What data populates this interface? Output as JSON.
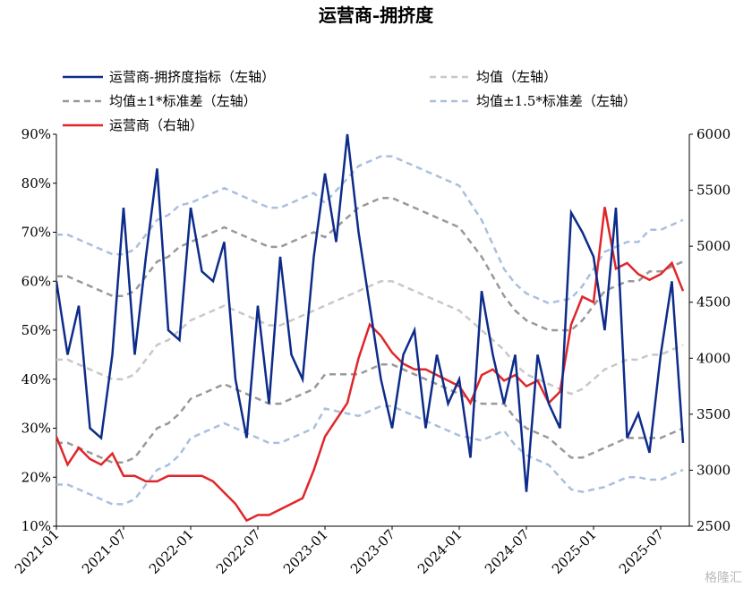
{
  "chart_data": {
    "type": "line",
    "title": "运营商-拥挤度",
    "watermark": "格隆汇",
    "categories": [
      "2021-01",
      null,
      null,
      null,
      null,
      null,
      "2021-07",
      null,
      null,
      null,
      null,
      null,
      "2022-01",
      null,
      null,
      null,
      null,
      null,
      "2022-07",
      null,
      null,
      null,
      null,
      null,
      "2023-01",
      null,
      null,
      null,
      null,
      null,
      "2023-07",
      null,
      null,
      null,
      null,
      null,
      "2024-01",
      null,
      null,
      null,
      null,
      null,
      "2024-07",
      null,
      null,
      null,
      null,
      null,
      "2025-01",
      null,
      null,
      null,
      null,
      null,
      "2025-07",
      null,
      null
    ],
    "ylim": [
      10,
      90
    ],
    "yticks": [
      {
        "value": 10,
        "label": "10%"
      },
      {
        "value": 20,
        "label": "20%"
      },
      {
        "value": 30,
        "label": "30%"
      },
      {
        "value": 40,
        "label": "40%"
      },
      {
        "value": 50,
        "label": "50%"
      },
      {
        "value": 60,
        "label": "60%"
      },
      {
        "value": 70,
        "label": "70%"
      },
      {
        "value": 80,
        "label": "80%"
      },
      {
        "value": 90,
        "label": "90%"
      }
    ],
    "y2lim": [
      2500,
      6000
    ],
    "y2ticks": [
      2500,
      3000,
      3500,
      4000,
      4500,
      5000,
      5500,
      6000
    ],
    "series": [
      {
        "name": "运营商-拥挤度指标（左轴）",
        "color": "#0d2c8a",
        "dashed": false,
        "axis": "y",
        "values": [
          60,
          45,
          55,
          30,
          28,
          45,
          75,
          45,
          65,
          83,
          50,
          48,
          75,
          62,
          60,
          68,
          40,
          28,
          55,
          35,
          65,
          45,
          40,
          65,
          82,
          68,
          90,
          70,
          55,
          40,
          30,
          45,
          50,
          30,
          45,
          35,
          40,
          24,
          58,
          45,
          35,
          45,
          17,
          45,
          35,
          30,
          74,
          70,
          65,
          50,
          75,
          28,
          33,
          25,
          45,
          60,
          27
        ]
      },
      {
        "name": "均值（左轴）",
        "color": "#c8c8c8",
        "dashed": true,
        "axis": "y",
        "values": [
          44,
          44,
          43,
          42,
          41,
          40,
          40,
          41,
          44,
          47,
          48,
          50,
          52,
          53,
          54,
          55,
          54,
          53,
          52,
          51,
          51,
          52,
          53,
          54,
          55,
          56,
          57,
          58,
          59,
          60,
          60,
          59,
          58,
          57,
          56,
          55,
          54,
          52,
          50,
          48,
          46,
          43,
          41,
          40,
          39,
          38,
          37,
          38,
          40,
          42,
          43,
          44,
          44,
          45,
          45,
          46,
          47
        ]
      },
      {
        "name": "均值±1*标准差（左轴）",
        "color": "#999999",
        "dashed": true,
        "axis": "y",
        "upper": [
          61,
          61,
          60,
          59,
          58,
          57,
          57,
          58,
          61,
          64,
          65,
          67,
          68,
          69,
          70,
          71,
          70,
          69,
          68,
          67,
          67,
          68,
          69,
          70,
          69,
          71,
          73,
          75,
          76,
          77,
          77,
          76,
          75,
          74,
          73,
          72,
          71,
          68,
          65,
          61,
          57,
          54,
          52,
          51,
          50,
          50,
          50,
          52,
          55,
          58,
          59,
          60,
          60,
          62,
          62,
          63,
          64
        ],
        "lower": [
          27,
          27,
          26,
          25,
          24,
          23,
          23,
          24,
          27,
          30,
          31,
          33,
          36,
          37,
          38,
          39,
          38,
          37,
          36,
          35,
          35,
          36,
          37,
          38,
          41,
          41,
          41,
          41,
          42,
          43,
          43,
          42,
          41,
          40,
          39,
          38,
          37,
          36,
          35,
          35,
          35,
          32,
          30,
          29,
          28,
          26,
          24,
          24,
          25,
          26,
          27,
          28,
          28,
          28,
          28,
          29,
          30
        ]
      },
      {
        "name": "均值±1.5*标准差（左轴）",
        "color": "#a9bfe0",
        "dashed": true,
        "axis": "y",
        "upper": [
          69.5,
          69.5,
          68.5,
          67.5,
          66.5,
          65.5,
          65.5,
          66.5,
          69.5,
          72.5,
          73.5,
          75.5,
          76,
          77,
          78,
          79,
          78,
          77,
          76,
          75,
          75,
          76,
          77,
          78,
          76,
          78.5,
          81,
          83.5,
          84.5,
          85.5,
          85.5,
          84.5,
          83.5,
          82.5,
          81.5,
          80.5,
          79.5,
          76,
          72.5,
          67.5,
          62.5,
          59.5,
          57.5,
          56.5,
          55.5,
          56,
          56.5,
          59,
          62.5,
          66,
          67,
          68,
          68,
          70.5,
          70.5,
          71.5,
          72.5
        ],
        "lower": [
          18.5,
          18.5,
          17.5,
          16.5,
          15.5,
          14.5,
          14.5,
          15.5,
          18.5,
          21.5,
          22.5,
          24.5,
          28,
          29,
          30,
          31,
          30,
          29,
          28,
          27,
          27,
          28,
          29,
          30,
          34,
          33.5,
          33,
          32.5,
          33.5,
          34.5,
          34.5,
          33.5,
          32.5,
          31.5,
          30.5,
          29.5,
          28.5,
          28,
          27.5,
          28.5,
          29.5,
          26.5,
          24.5,
          23.5,
          22.5,
          20,
          17.5,
          17,
          17.5,
          18,
          19,
          20,
          20,
          19.5,
          19.5,
          20.5,
          21.5
        ]
      },
      {
        "name": "运营商（右轴）",
        "color": "#e0262a",
        "dashed": false,
        "axis": "y2",
        "values": [
          3300,
          3050,
          3200,
          3100,
          3050,
          3150,
          2950,
          2950,
          2900,
          2900,
          2950,
          2950,
          2950,
          2950,
          2900,
          2800,
          2700,
          2550,
          2600,
          2600,
          2650,
          2700,
          2750,
          3000,
          3300,
          3450,
          3600,
          4000,
          4300,
          4200,
          4050,
          3950,
          3900,
          3900,
          3850,
          3800,
          3750,
          3600,
          3850,
          3900,
          3800,
          3850,
          3750,
          3800,
          3600,
          3700,
          4300,
          4550,
          4500,
          5350,
          4800,
          4850,
          4750,
          4700,
          4750,
          4850,
          4600
        ]
      }
    ]
  }
}
